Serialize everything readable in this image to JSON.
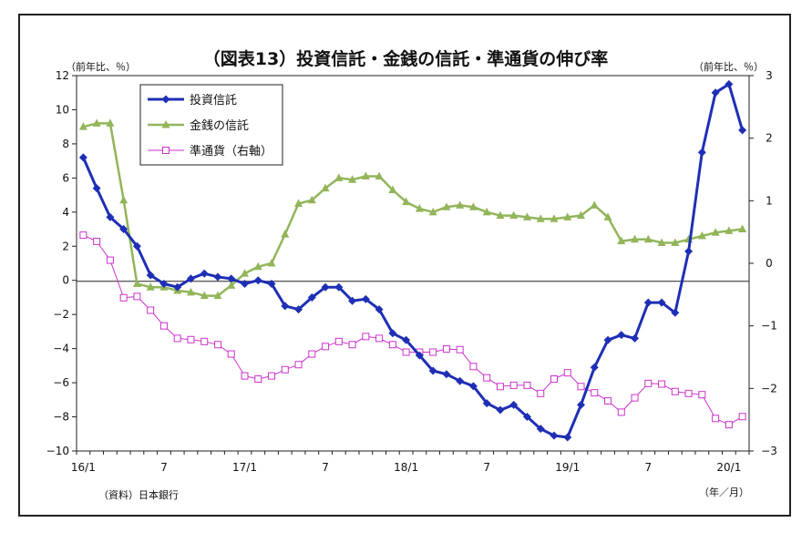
{
  "chart_data": {
    "type": "line",
    "title": "（図表13）投資信託・金銭の信託・準通貨の伸び率",
    "left_unit": "（前年比、％）",
    "right_unit": "（前年比、％）",
    "source": "（資料）日本銀行",
    "x_unit": "（年／月）",
    "x_tick_labels": [
      {
        "index": 0,
        "label": "16/1"
      },
      {
        "index": 6,
        "label": "7"
      },
      {
        "index": 12,
        "label": "17/1"
      },
      {
        "index": 18,
        "label": "7"
      },
      {
        "index": 24,
        "label": "18/1"
      },
      {
        "index": 30,
        "label": "7"
      },
      {
        "index": 36,
        "label": "19/1"
      },
      {
        "index": 42,
        "label": "7"
      },
      {
        "index": 48,
        "label": "20/1"
      }
    ],
    "ylim_left": [
      -10,
      12
    ],
    "yticks_left": [
      "12",
      "10",
      "8",
      "6",
      "4",
      "2",
      "0",
      "−2",
      "−4",
      "−6",
      "−8",
      "−10"
    ],
    "ylim_right": [
      -3,
      3
    ],
    "yticks_right": [
      "3",
      "2",
      "1",
      "0",
      "−1",
      "−2",
      "−3"
    ],
    "legend": {
      "placement": "top-left"
    },
    "series": [
      {
        "name": "投資信託",
        "axis": "left",
        "color": "#1f2fb5",
        "marker": "diamond",
        "values": [
          7.2,
          5.4,
          3.7,
          3.0,
          2.0,
          0.3,
          -0.2,
          -0.4,
          0.1,
          0.4,
          0.2,
          0.1,
          -0.2,
          0.0,
          -0.2,
          -1.5,
          -1.7,
          -1.0,
          -0.4,
          -0.4,
          -1.2,
          -1.1,
          -1.7,
          -3.1,
          -3.5,
          -4.4,
          -5.3,
          -5.5,
          -5.9,
          -6.2,
          -7.2,
          -7.6,
          -7.3,
          -8.0,
          -8.7,
          -9.1,
          -9.2,
          -7.3,
          -5.1,
          -3.5,
          -3.2,
          -3.4,
          -1.3,
          -1.3,
          -1.9,
          1.7,
          7.5,
          11.0,
          11.5,
          8.8
        ]
      },
      {
        "name": "金銭の信託",
        "axis": "left",
        "color": "#92b55a",
        "marker": "triangle",
        "values": [
          9.0,
          9.2,
          9.2,
          4.7,
          -0.2,
          -0.4,
          -0.4,
          -0.6,
          -0.7,
          -0.9,
          -0.9,
          -0.3,
          0.4,
          0.8,
          1.0,
          2.7,
          4.5,
          4.7,
          5.4,
          6.0,
          5.9,
          6.1,
          6.1,
          5.3,
          4.6,
          4.2,
          4.0,
          4.3,
          4.4,
          4.3,
          4.0,
          3.8,
          3.8,
          3.7,
          3.6,
          3.6,
          3.7,
          3.8,
          4.4,
          3.7,
          2.3,
          2.4,
          2.4,
          2.2,
          2.2,
          2.4,
          2.6,
          2.8,
          2.9,
          3.0
        ]
      },
      {
        "name": "準通貨（右軸）",
        "axis": "right",
        "color": "#cc33cc",
        "marker": "square-open",
        "values": [
          0.45,
          0.35,
          0.05,
          -0.55,
          -0.53,
          -0.75,
          -1.0,
          -1.2,
          -1.22,
          -1.25,
          -1.3,
          -1.45,
          -1.8,
          -1.85,
          -1.8,
          -1.7,
          -1.62,
          -1.45,
          -1.33,
          -1.25,
          -1.3,
          -1.17,
          -1.2,
          -1.3,
          -1.42,
          -1.42,
          -1.42,
          -1.37,
          -1.38,
          -1.65,
          -1.83,
          -1.97,
          -1.95,
          -1.95,
          -2.08,
          -1.85,
          -1.75,
          -1.97,
          -2.07,
          -2.2,
          -2.38,
          -2.15,
          -1.92,
          -1.93,
          -2.05,
          -2.08,
          -2.1,
          -2.48,
          -2.58,
          -2.45
        ]
      }
    ]
  }
}
